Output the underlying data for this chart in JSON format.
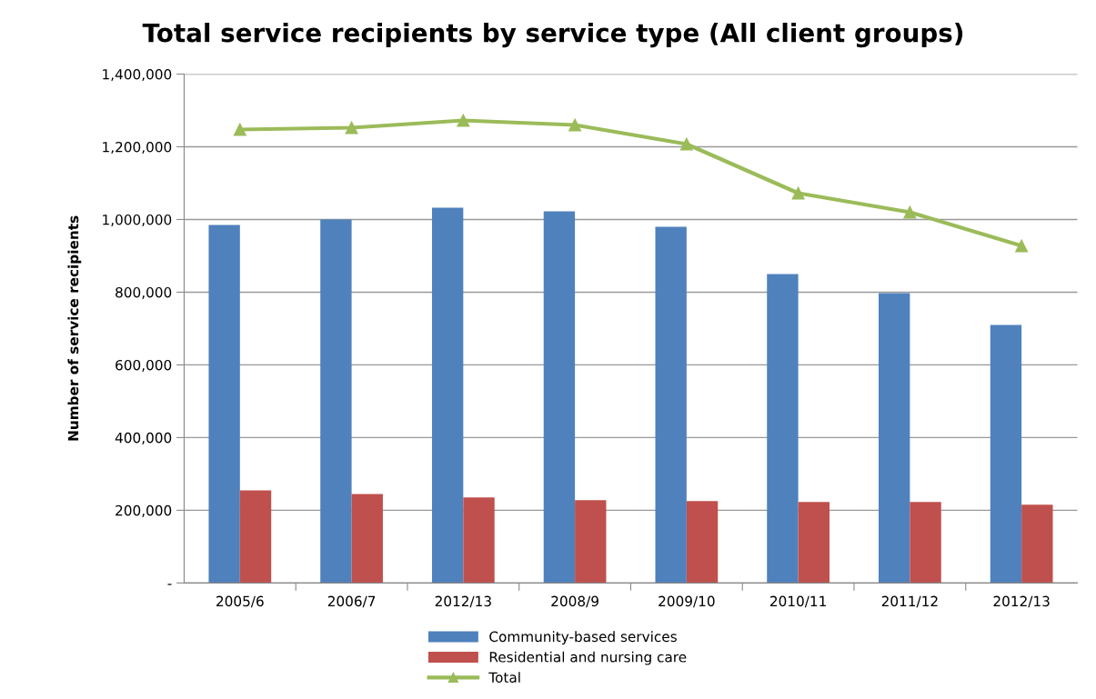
{
  "chart_data": {
    "type": "bar",
    "title": "Total service recipients by service type (All client groups)",
    "ylabel": "Number of service recipients",
    "categories": [
      "2005/6",
      "2006/7",
      "2012/13",
      "2008/9",
      "2009/10",
      "2010/11",
      "2011/12",
      "2012/13"
    ],
    "series": [
      {
        "name": "Community-based services",
        "color": "#4f81bd",
        "values": [
          985000,
          1000000,
          1032500,
          1022500,
          980000,
          850000,
          797500,
          710000
        ]
      },
      {
        "name": "Residential and nursing care",
        "color": "#c0504d",
        "values": [
          255000,
          245000,
          235000,
          227500,
          225000,
          222500,
          222500,
          215000
        ]
      },
      {
        "name": "Total",
        "type": "line",
        "color": "#9bbb59",
        "marker": "triangle",
        "values": [
          1247500,
          1252500,
          1272500,
          1260000,
          1207500,
          1072500,
          1020000,
          927500
        ]
      }
    ],
    "ylim": [
      0,
      1400000
    ],
    "yticks": [
      {
        "value": 0,
        "label": "-"
      },
      {
        "value": 200000,
        "label": "200,000"
      },
      {
        "value": 400000,
        "label": "400,000"
      },
      {
        "value": 600000,
        "label": "600,000"
      },
      {
        "value": 800000,
        "label": "800,000"
      },
      {
        "value": 1000000,
        "label": "1,000,000"
      },
      {
        "value": 1200000,
        "label": "1,200,000"
      },
      {
        "value": 1400000,
        "label": "1,400,000"
      }
    ],
    "grid": "y",
    "legend": "bottom"
  }
}
